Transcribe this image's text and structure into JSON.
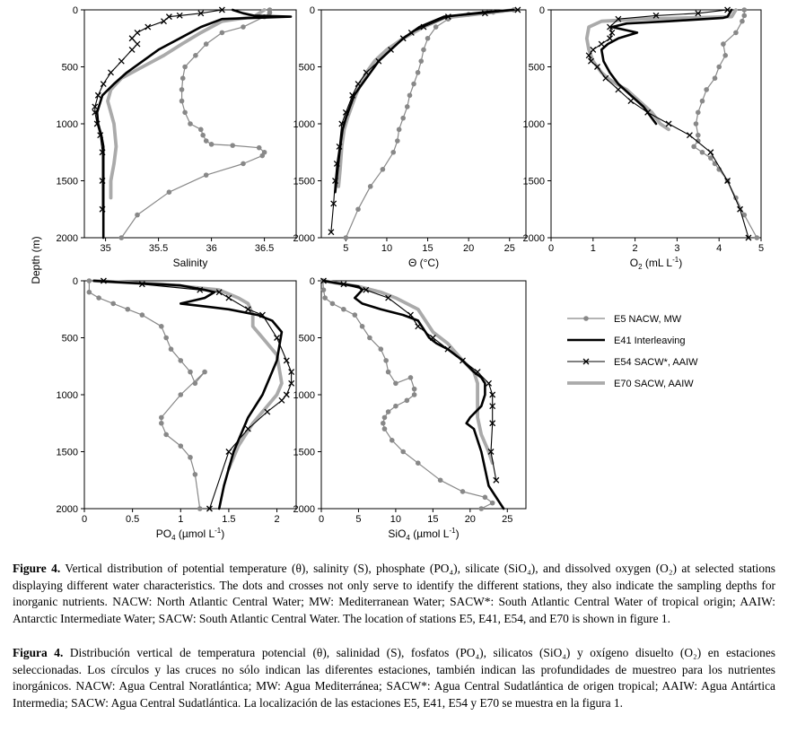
{
  "figure": {
    "ylabel": "Depth (m)",
    "legend": [
      {
        "label": "E5 NACW, MW",
        "color": "#888888",
        "marker": "dot",
        "width": 1.2
      },
      {
        "label": "E41 Interleaving",
        "color": "#000000",
        "marker": "none",
        "width": 2.6
      },
      {
        "label": "E54 SACW*, AAIW",
        "color": "#000000",
        "marker": "cross",
        "width": 1.1
      },
      {
        "label": "E70 SACW, AAIW",
        "color": "#aaaaaa",
        "marker": "none",
        "width": 3.8
      }
    ]
  },
  "chart_data": [
    {
      "type": "line",
      "id": "salinity",
      "xlabel_parts": [
        "Salinity",
        ""
      ],
      "xlim": [
        34.8,
        36.8
      ],
      "ylim": [
        2000,
        0
      ],
      "xticks": [
        35,
        35.5,
        36,
        36.5
      ],
      "yticks": [
        0,
        500,
        1000,
        1500,
        2000
      ],
      "series": [
        {
          "station": "E5",
          "x": [
            36.55,
            36.55,
            36.5,
            36.3,
            36.1,
            35.95,
            35.85,
            35.75,
            35.73,
            35.72,
            35.72,
            35.75,
            35.8,
            35.9,
            35.92,
            35.95,
            36.0,
            36.2,
            36.45,
            36.5,
            36.48,
            36.3,
            35.95,
            35.6,
            35.3,
            35.15
          ],
          "y": [
            0,
            25,
            60,
            150,
            200,
            300,
            400,
            500,
            600,
            700,
            800,
            900,
            1000,
            1050,
            1100,
            1150,
            1180,
            1190,
            1210,
            1250,
            1280,
            1350,
            1450,
            1600,
            1800,
            2000
          ]
        },
        {
          "station": "E41",
          "x": [
            36.2,
            36.3,
            36.4,
            36.75,
            36.1,
            35.9,
            35.7,
            35.5,
            35.35,
            35.2,
            35.08,
            34.97,
            34.92,
            34.93,
            34.96,
            34.98,
            34.98,
            34.98
          ],
          "y": [
            0,
            30,
            50,
            60,
            80,
            150,
            250,
            350,
            450,
            550,
            650,
            750,
            900,
            1000,
            1100,
            1200,
            1500,
            2000
          ]
        },
        {
          "station": "E54",
          "x": [
            36.1,
            35.9,
            35.7,
            35.6,
            35.55,
            35.4,
            35.3,
            35.25,
            35.3,
            35.25,
            35.15,
            35.05,
            34.98,
            34.93,
            34.9,
            34.9,
            34.92,
            34.95,
            34.97,
            34.97,
            34.97
          ],
          "y": [
            0,
            30,
            50,
            60,
            100,
            150,
            200,
            250,
            300,
            350,
            450,
            550,
            650,
            750,
            850,
            900,
            1000,
            1100,
            1250,
            1500,
            1750
          ]
        },
        {
          "station": "E70",
          "x": [
            36.5,
            36.4,
            36.1,
            35.9,
            35.72,
            35.55,
            35.35,
            35.15,
            35.05,
            35.02,
            35.05,
            35.08,
            35.1,
            35.08,
            35.05,
            35.05
          ],
          "y": [
            0,
            60,
            100,
            200,
            300,
            400,
            500,
            600,
            700,
            800,
            900,
            1000,
            1200,
            1350,
            1500,
            1650
          ]
        }
      ]
    },
    {
      "type": "line",
      "id": "theta",
      "xlabel_parts": [
        "Θ (°C)",
        ""
      ],
      "xlim": [
        2,
        27
      ],
      "ylim": [
        2000,
        0
      ],
      "xticks": [
        5,
        10,
        15,
        20,
        25
      ],
      "yticks": [
        0,
        500,
        1000,
        1500,
        2000
      ],
      "series": [
        {
          "station": "E5",
          "x": [
            25.5,
            23,
            20,
            17.5,
            16,
            15,
            14.5,
            14.2,
            13.8,
            13.3,
            12.8,
            12.5,
            12,
            11.5,
            11.3,
            10.8,
            9.5,
            8,
            6.5,
            5
          ],
          "y": [
            0,
            20,
            40,
            80,
            150,
            250,
            350,
            450,
            550,
            650,
            750,
            850,
            950,
            1050,
            1150,
            1250,
            1400,
            1550,
            1750,
            2000
          ]
        },
        {
          "station": "E41",
          "x": [
            25.5,
            22,
            17,
            14,
            12,
            10.5,
            9,
            8,
            7,
            6,
            5.5,
            5,
            4.6,
            4.3,
            4,
            3.7
          ],
          "y": [
            0,
            20,
            60,
            150,
            250,
            350,
            450,
            550,
            650,
            750,
            850,
            950,
            1050,
            1200,
            1400,
            1600
          ]
        },
        {
          "station": "E54",
          "x": [
            26,
            22,
            17.5,
            14.5,
            13,
            12,
            10.5,
            9,
            7.5,
            6.5,
            5.8,
            5,
            4.5,
            4.2,
            3.9,
            3.7,
            3.5,
            3.2
          ],
          "y": [
            0,
            30,
            60,
            150,
            200,
            250,
            350,
            450,
            550,
            650,
            750,
            900,
            1000,
            1200,
            1350,
            1500,
            1700,
            1950
          ]
        },
        {
          "station": "E70",
          "x": [
            25.5,
            22,
            17,
            14.5,
            12,
            10,
            8.5,
            7.5,
            6.8,
            6.2,
            5.7,
            5.2,
            4.8,
            4.5,
            4.3,
            4.1
          ],
          "y": [
            0,
            30,
            70,
            150,
            250,
            350,
            450,
            550,
            650,
            750,
            850,
            950,
            1050,
            1200,
            1400,
            1550
          ]
        }
      ]
    },
    {
      "type": "line",
      "id": "oxygen",
      "xlabel_parts": [
        "O",
        "2",
        " (mL L",
        "-1",
        ")"
      ],
      "xlim": [
        0,
        5
      ],
      "ylim": [
        2000,
        0
      ],
      "xticks": [
        0,
        1,
        2,
        3,
        4,
        5
      ],
      "yticks": [
        0,
        500,
        1000,
        1500,
        2000
      ],
      "series": [
        {
          "station": "E5",
          "x": [
            4.6,
            4.6,
            4.55,
            4.4,
            4.1,
            4.15,
            4.0,
            3.9,
            3.7,
            3.6,
            3.5,
            3.45,
            3.5,
            3.5,
            3.4,
            3.6,
            3.8,
            3.9,
            4.0,
            4.2,
            4.4,
            4.6,
            4.9
          ],
          "y": [
            0,
            50,
            100,
            200,
            300,
            400,
            500,
            600,
            700,
            800,
            900,
            1000,
            1100,
            1150,
            1200,
            1250,
            1300,
            1350,
            1400,
            1500,
            1650,
            1800,
            2000
          ]
        },
        {
          "station": "E41",
          "x": [
            4.3,
            4.2,
            4.1,
            2.8,
            1.8,
            1.45,
            2.05,
            1.6,
            1.35,
            1.2,
            1.25,
            1.4,
            1.6,
            1.9,
            2.2,
            2.5
          ],
          "y": [
            0,
            60,
            70,
            100,
            120,
            150,
            200,
            250,
            300,
            350,
            450,
            550,
            650,
            750,
            850,
            1000
          ]
        },
        {
          "station": "E54",
          "x": [
            4.2,
            3.5,
            2.5,
            1.6,
            1.4,
            1.45,
            1.4,
            1.2,
            1.0,
            0.9,
            0.95,
            1.1,
            1.3,
            1.6,
            1.9,
            2.3,
            2.8,
            3.3,
            3.8,
            4.2,
            4.5,
            4.7
          ],
          "y": [
            0,
            30,
            50,
            80,
            150,
            200,
            250,
            300,
            350,
            400,
            450,
            500,
            600,
            700,
            800,
            900,
            1000,
            1100,
            1250,
            1500,
            1750,
            2000
          ]
        },
        {
          "station": "E70",
          "x": [
            4.4,
            4.3,
            2.2,
            1.2,
            0.9,
            0.85,
            0.9,
            1.0,
            1.1,
            1.2,
            1.35,
            1.55,
            1.8,
            2.1,
            2.4,
            2.6,
            2.8
          ],
          "y": [
            0,
            60,
            80,
            100,
            150,
            250,
            350,
            450,
            500,
            550,
            600,
            650,
            700,
            800,
            900,
            1000,
            1050
          ]
        }
      ]
    },
    {
      "type": "line",
      "id": "phosphate",
      "xlabel_parts": [
        "PO",
        "4",
        " (µmol L",
        "-1",
        ")"
      ],
      "xlim": [
        0,
        2.2
      ],
      "ylim": [
        2000,
        0
      ],
      "xticks": [
        0,
        0.5,
        1,
        1.5,
        2
      ],
      "yticks": [
        0,
        500,
        1000,
        1500,
        2000
      ],
      "series": [
        {
          "station": "E5",
          "x": [
            0.05,
            0.05,
            0.15,
            0.3,
            0.45,
            0.6,
            0.8,
            0.85,
            0.9,
            1.0,
            1.1,
            1.15,
            1.25,
            1.0,
            0.8,
            0.8,
            0.85,
            1.0,
            1.1,
            1.15,
            1.2
          ],
          "y": [
            0,
            100,
            150,
            200,
            250,
            300,
            400,
            500,
            600,
            700,
            800,
            900,
            800,
            1000,
            1200,
            1250,
            1350,
            1450,
            1550,
            1700,
            2000
          ]
        },
        {
          "station": "E41",
          "x": [
            0.1,
            0.5,
            1.0,
            1.25,
            1.35,
            1.25,
            1.0,
            1.3,
            1.5,
            1.8,
            1.95,
            2.05,
            2.0,
            1.85,
            1.7,
            1.55,
            1.45,
            1.4
          ],
          "y": [
            0,
            20,
            40,
            80,
            100,
            150,
            200,
            230,
            250,
            300,
            350,
            450,
            700,
            1000,
            1200,
            1500,
            1800,
            2000
          ]
        },
        {
          "station": "E54",
          "x": [
            0.2,
            0.6,
            1.2,
            1.4,
            1.5,
            1.7,
            1.85,
            2.0,
            2.1,
            2.15,
            2.15,
            2.1,
            2.05,
            1.9,
            1.7,
            1.5,
            1.3
          ],
          "y": [
            0,
            30,
            80,
            100,
            150,
            250,
            300,
            500,
            700,
            800,
            900,
            1000,
            1050,
            1150,
            1300,
            1500,
            2000
          ]
        },
        {
          "station": "E70",
          "x": [
            0.1,
            0.8,
            1.4,
            1.6,
            1.7,
            1.75,
            1.75,
            1.85,
            2.0,
            2.05,
            2.0,
            1.9,
            1.75,
            1.6,
            1.5
          ],
          "y": [
            0,
            30,
            80,
            150,
            200,
            300,
            400,
            500,
            650,
            900,
            1000,
            1100,
            1250,
            1450,
            1650
          ]
        }
      ]
    },
    {
      "type": "line",
      "id": "silicate",
      "xlabel_parts": [
        "SiO",
        "4",
        " (µmol L",
        "-1",
        ")"
      ],
      "xlim": [
        0,
        27.5
      ],
      "ylim": [
        2000,
        0
      ],
      "xticks": [
        0,
        5,
        10,
        15,
        20,
        25
      ],
      "yticks": [
        0,
        500,
        1000,
        1500,
        2000
      ],
      "series": [
        {
          "station": "E5",
          "x": [
            0.2,
            0.3,
            0.5,
            1.5,
            3,
            4.5,
            5.5,
            6.5,
            8,
            8.7,
            9,
            10,
            12,
            12.5,
            12.5,
            11.5,
            10,
            9,
            8.5,
            8.3,
            8.5,
            9.5,
            11,
            13,
            16,
            19,
            22,
            23,
            21.5
          ],
          "y": [
            0,
            80,
            150,
            200,
            250,
            300,
            400,
            500,
            600,
            700,
            800,
            900,
            850,
            950,
            1000,
            1050,
            1100,
            1150,
            1200,
            1250,
            1300,
            1400,
            1500,
            1600,
            1750,
            1850,
            1900,
            1950,
            2000
          ]
        },
        {
          "station": "E41",
          "x": [
            0.3,
            2,
            5,
            5.5,
            4.5,
            5.5,
            8,
            11,
            13,
            14,
            14.5,
            15.5,
            17,
            19,
            20.5,
            21.5,
            22,
            22,
            21.5,
            20,
            19.5,
            20.5,
            21.5,
            22.5,
            24.5
          ],
          "y": [
            0,
            20,
            50,
            80,
            150,
            200,
            250,
            300,
            350,
            450,
            500,
            550,
            600,
            700,
            800,
            850,
            900,
            1000,
            1100,
            1200,
            1250,
            1300,
            1500,
            1800,
            2000
          ]
        },
        {
          "station": "E54",
          "x": [
            0.3,
            3,
            6,
            9,
            12,
            13,
            15,
            17,
            19,
            21,
            22.5,
            23,
            23,
            23,
            22.8,
            23.5
          ],
          "y": [
            0,
            30,
            80,
            150,
            300,
            400,
            500,
            600,
            700,
            800,
            900,
            1000,
            1100,
            1250,
            1500,
            1750
          ]
        },
        {
          "station": "E70",
          "x": [
            0.3,
            2,
            5,
            8,
            10,
            13,
            14,
            15,
            17,
            19,
            20.5,
            21,
            21,
            21,
            21.5,
            22.5,
            23
          ],
          "y": [
            0,
            20,
            50,
            100,
            150,
            250,
            350,
            450,
            550,
            700,
            800,
            900,
            1000,
            1200,
            1350,
            1500,
            1600
          ]
        }
      ]
    }
  ],
  "caption_en": {
    "label": "Figure 4.",
    "text": " Vertical distribution of potential temperature (θ), salinity (S), phosphate (PO₄), silicate (SiO₄), and dissolved oxygen (O₂) at selected stations displaying different water characteristics. The dots and crosses not only serve to identify the different stations, they also indicate the sampling depths for inorganic nutrients. NACW: North Atlantic Central Water; MW: Mediterranean Water; SACW*: South Atlantic Central Water of tropical origin; AAIW: Antarctic Intermediate Water; SACW: South Atlantic Central Water. The location of stations E5, E41, E54, and E70 is shown in figure 1."
  },
  "caption_es": {
    "label": "Figura 4.",
    "text": " Distribución vertical de temperatura potencial (θ), salinidad (S), fosfatos (PO₄), silicatos (SiO₄) y oxígeno disuelto (O₂) en estaciones seleccionadas. Los círculos y las cruces no sólo indican las diferentes estaciones, también indican las profundidades de muestreo para los nutrientes inorgánicos. NACW: Agua Central Noratlántica; MW: Agua Mediterránea; SACW*: Agua Central Sudatlántica de origen tropical; AAIW: Agua Antártica Intermedia; SACW: Agua Central Sudatlántica. La localización de las estaciones E5, E41, E54 y E70 se muestra en la figura 1."
  }
}
